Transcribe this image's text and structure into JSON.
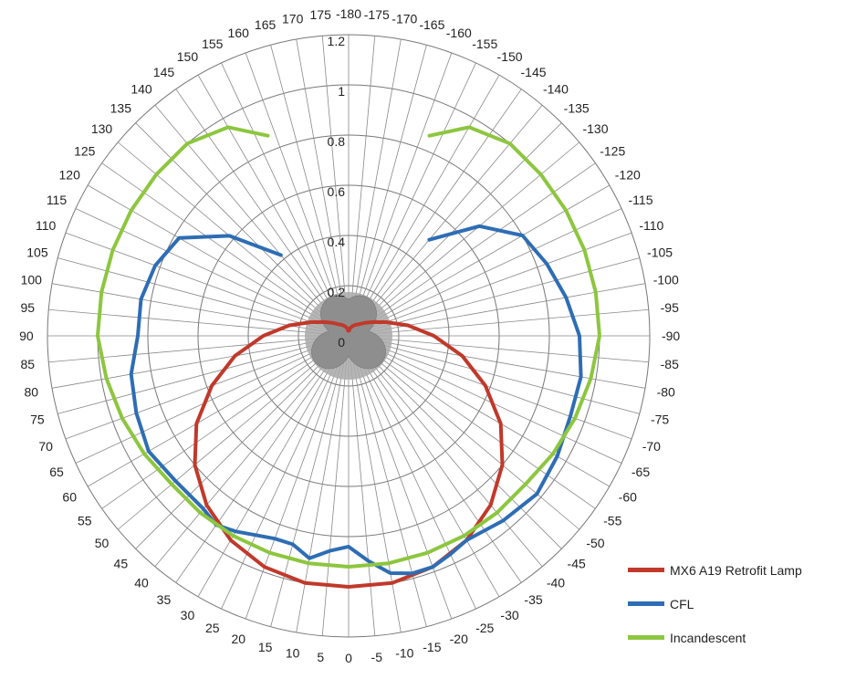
{
  "chart_data": {
    "type": "radar",
    "title": "",
    "radial_axis": {
      "min": 0,
      "max": 1.2,
      "ticks": [
        0,
        0.2,
        0.4,
        0.6,
        0.8,
        1,
        1.2
      ]
    },
    "angle_labels": [
      "-180",
      "-175",
      "-170",
      "-165",
      "-160",
      "-155",
      "-150",
      "-145",
      "-140",
      "-135",
      "-130",
      "-125",
      "-120",
      "-115",
      "-110",
      "-105",
      "-100",
      "-95",
      "-90",
      "-85",
      "-80",
      "-75",
      "-70",
      "-65",
      "-60",
      "-55",
      "-50",
      "-45",
      "-40",
      "-35",
      "-30",
      "-25",
      "-20",
      "-15",
      "-10",
      "-5",
      "0",
      "5",
      "10",
      "15",
      "20",
      "25",
      "30",
      "35",
      "40",
      "45",
      "50",
      "55",
      "60",
      "65",
      "70",
      "75",
      "80",
      "85",
      "90",
      "95",
      "100",
      "105",
      "110",
      "115",
      "120",
      "125",
      "130",
      "135",
      "140",
      "145",
      "150",
      "155",
      "160",
      "165",
      "170",
      "175"
    ],
    "legend_position": "bottom-right",
    "series": [
      {
        "name": "MX6 A19 Retrofit Lamp",
        "color": "#c0392b",
        "angles": [
          0,
          10,
          20,
          30,
          40,
          50,
          60,
          70,
          80,
          90,
          100,
          110,
          120,
          130,
          140,
          150,
          160,
          170,
          175,
          -175,
          -170,
          -160,
          -150,
          -140,
          -130,
          -120,
          -110,
          -100,
          -90,
          -80,
          -70,
          -60,
          -50,
          -40,
          -30,
          -20,
          -10,
          0
        ],
        "values": [
          1.0,
          1.0,
          0.98,
          0.94,
          0.88,
          0.8,
          0.7,
          0.58,
          0.46,
          0.34,
          0.24,
          0.16,
          0.11,
          0.08,
          0.06,
          0.05,
          0.04,
          0.03,
          0.02,
          0.02,
          0.03,
          0.04,
          0.05,
          0.06,
          0.08,
          0.11,
          0.16,
          0.24,
          0.34,
          0.46,
          0.58,
          0.7,
          0.8,
          0.88,
          0.94,
          0.98,
          1.0,
          1.0
        ]
      },
      {
        "name": "CFL",
        "color": "#2e6db4",
        "angles": [
          140,
          130,
          120,
          110,
          100,
          90,
          80,
          70,
          60,
          50,
          40,
          35,
          30,
          20,
          15,
          10,
          5,
          0,
          -5,
          -10,
          -15,
          -20,
          -25,
          -30,
          -40,
          -50,
          -60,
          -70,
          -80,
          -90,
          -100,
          -110,
          -120,
          -130,
          -140
        ],
        "values": [
          0.42,
          0.62,
          0.78,
          0.82,
          0.84,
          0.84,
          0.88,
          0.9,
          0.92,
          0.9,
          0.9,
          0.92,
          0.9,
          0.86,
          0.86,
          0.9,
          0.86,
          0.84,
          0.9,
          0.96,
          0.98,
          0.98,
          0.96,
          0.94,
          0.96,
          0.98,
          0.96,
          0.94,
          0.94,
          0.92,
          0.88,
          0.84,
          0.8,
          0.68,
          0.5
        ]
      },
      {
        "name": "Incandescent",
        "color": "#8dc63f",
        "angles": [
          158,
          150,
          140,
          130,
          120,
          110,
          100,
          90,
          80,
          70,
          60,
          50,
          40,
          30,
          20,
          10,
          0,
          -10,
          -20,
          -30,
          -40,
          -50,
          -60,
          -70,
          -80,
          -90,
          -100,
          -110,
          -120,
          -130,
          -140,
          -150,
          -158
        ],
        "values": [
          0.86,
          0.96,
          1.0,
          1.0,
          1.0,
          1.0,
          1.0,
          1.0,
          0.98,
          0.96,
          0.94,
          0.92,
          0.92,
          0.92,
          0.92,
          0.92,
          0.92,
          0.92,
          0.92,
          0.92,
          0.92,
          0.92,
          0.94,
          0.96,
          0.98,
          1.0,
          1.0,
          1.0,
          1.0,
          1.0,
          1.0,
          0.96,
          0.86
        ]
      }
    ]
  }
}
